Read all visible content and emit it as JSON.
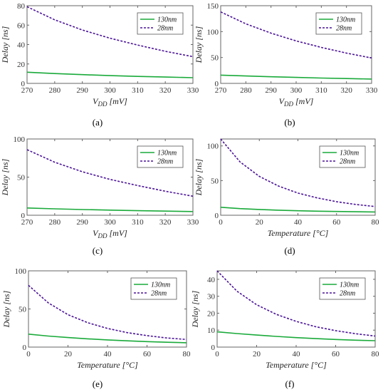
{
  "colors": {
    "series_130nm": "#1aaa3a",
    "series_28nm": "#4b1499"
  },
  "chart_data": [
    {
      "type": "line",
      "panel_label": "(a)",
      "xlabel_main": "V",
      "xlabel_sub": "DD",
      "xlabel_unit": " [mV]",
      "ylabel": "Delay [ns]",
      "xlim": [
        270,
        330
      ],
      "ylim": [
        0,
        80
      ],
      "xticks": [
        270,
        280,
        290,
        300,
        310,
        320,
        330
      ],
      "yticks": [
        0,
        20,
        40,
        60,
        80
      ],
      "legend_position": "top-right",
      "x": [
        270,
        280,
        290,
        300,
        310,
        320,
        330
      ],
      "series": [
        {
          "name": "130nm",
          "style": "solid",
          "values": [
            11.5,
            10.1,
            9.0,
            8.0,
            7.2,
            6.5,
            5.9
          ]
        },
        {
          "name": "28nm",
          "style": "dashed",
          "values": [
            79,
            65.5,
            55,
            46.5,
            39.5,
            33,
            27.5
          ]
        }
      ]
    },
    {
      "type": "line",
      "panel_label": "(b)",
      "xlabel_main": "V",
      "xlabel_sub": "DD",
      "xlabel_unit": " [mV]",
      "ylabel": "Delay [ns]",
      "xlim": [
        270,
        330
      ],
      "ylim": [
        0,
        150
      ],
      "xticks": [
        270,
        280,
        290,
        300,
        310,
        320,
        330
      ],
      "yticks": [
        0,
        50,
        100,
        150
      ],
      "legend_position": "top-right",
      "x": [
        270,
        280,
        290,
        300,
        310,
        320,
        330
      ],
      "series": [
        {
          "name": "130nm",
          "style": "solid",
          "values": [
            16,
            14.3,
            12.8,
            11.5,
            10.3,
            9.3,
            8.4
          ]
        },
        {
          "name": "28nm",
          "style": "dashed",
          "values": [
            138,
            115,
            97,
            82,
            69.5,
            58.5,
            49
          ]
        }
      ]
    },
    {
      "type": "line",
      "panel_label": "(c)",
      "xlabel_main": "V",
      "xlabel_sub": "DD",
      "xlabel_unit": " [mV]",
      "ylabel": "Delay [ns]",
      "xlim": [
        270,
        330
      ],
      "ylim": [
        0,
        100
      ],
      "xticks": [
        270,
        280,
        290,
        300,
        310,
        320,
        330
      ],
      "yticks": [
        0,
        50,
        100
      ],
      "legend_position": "top-right",
      "x": [
        270,
        280,
        290,
        300,
        310,
        320,
        330
      ],
      "series": [
        {
          "name": "130nm",
          "style": "solid",
          "values": [
            9.5,
            8.4,
            7.5,
            6.7,
            6.0,
            5.4,
            4.9
          ]
        },
        {
          "name": "28nm",
          "style": "dashed",
          "values": [
            86,
            69.5,
            57,
            47,
            39,
            31.5,
            25
          ]
        }
      ]
    },
    {
      "type": "line",
      "panel_label": "(d)",
      "xlabel_main": "Temperature [°C]",
      "xlabel_sub": "",
      "xlabel_unit": "",
      "ylabel": "Delay [ns]",
      "xlim": [
        0,
        80
      ],
      "ylim": [
        0,
        110
      ],
      "xticks": [
        0,
        20,
        40,
        60,
        80
      ],
      "yticks": [
        0,
        50,
        100
      ],
      "legend_position": "top-right",
      "x": [
        0,
        10,
        20,
        30,
        40,
        50,
        60,
        70,
        80
      ],
      "series": [
        {
          "name": "130nm",
          "style": "solid",
          "values": [
            11.5,
            9.6,
            8.3,
            7.3,
            6.5,
            5.9,
            5.4,
            5.0,
            4.7
          ]
        },
        {
          "name": "28nm",
          "style": "dashed",
          "values": [
            110,
            77,
            56,
            42,
            32,
            25,
            19.5,
            15.5,
            12.5
          ]
        }
      ]
    },
    {
      "type": "line",
      "panel_label": "(e)",
      "xlabel_main": "Temperature [°C]",
      "xlabel_sub": "",
      "xlabel_unit": "",
      "ylabel": "Delay [ns]",
      "xlim": [
        0,
        80
      ],
      "ylim": [
        0,
        100
      ],
      "xticks": [
        0,
        20,
        40,
        60,
        80
      ],
      "yticks": [
        0,
        50,
        100
      ],
      "legend_position": "top-right",
      "x": [
        0,
        10,
        20,
        30,
        40,
        50,
        60,
        70,
        80
      ],
      "series": [
        {
          "name": "130nm",
          "style": "solid",
          "values": [
            17,
            14.5,
            12.5,
            10.8,
            9.4,
            8.2,
            7.2,
            6.4,
            5.7
          ]
        },
        {
          "name": "28nm",
          "style": "dashed",
          "values": [
            81,
            58,
            42.5,
            32,
            24.5,
            19,
            15,
            12,
            10
          ]
        }
      ]
    },
    {
      "type": "line",
      "panel_label": "(f)",
      "xlabel_main": "Temperature [°C]",
      "xlabel_sub": "",
      "xlabel_unit": "",
      "ylabel": "Delay [ns]",
      "xlim": [
        0,
        80
      ],
      "ylim": [
        0,
        45
      ],
      "xticks": [
        0,
        20,
        40,
        60,
        80
      ],
      "yticks": [
        0,
        10,
        20,
        30,
        40
      ],
      "legend_position": "top-right",
      "x": [
        0,
        10,
        20,
        30,
        40,
        50,
        60,
        70,
        80
      ],
      "series": [
        {
          "name": "130nm",
          "style": "solid",
          "values": [
            9,
            8.0,
            7.1,
            6.3,
            5.6,
            5.0,
            4.5,
            4.1,
            3.8
          ]
        },
        {
          "name": "28nm",
          "style": "dashed",
          "values": [
            45,
            33,
            25,
            19.3,
            15.2,
            12,
            9.7,
            7.9,
            6.5
          ]
        }
      ]
    }
  ]
}
